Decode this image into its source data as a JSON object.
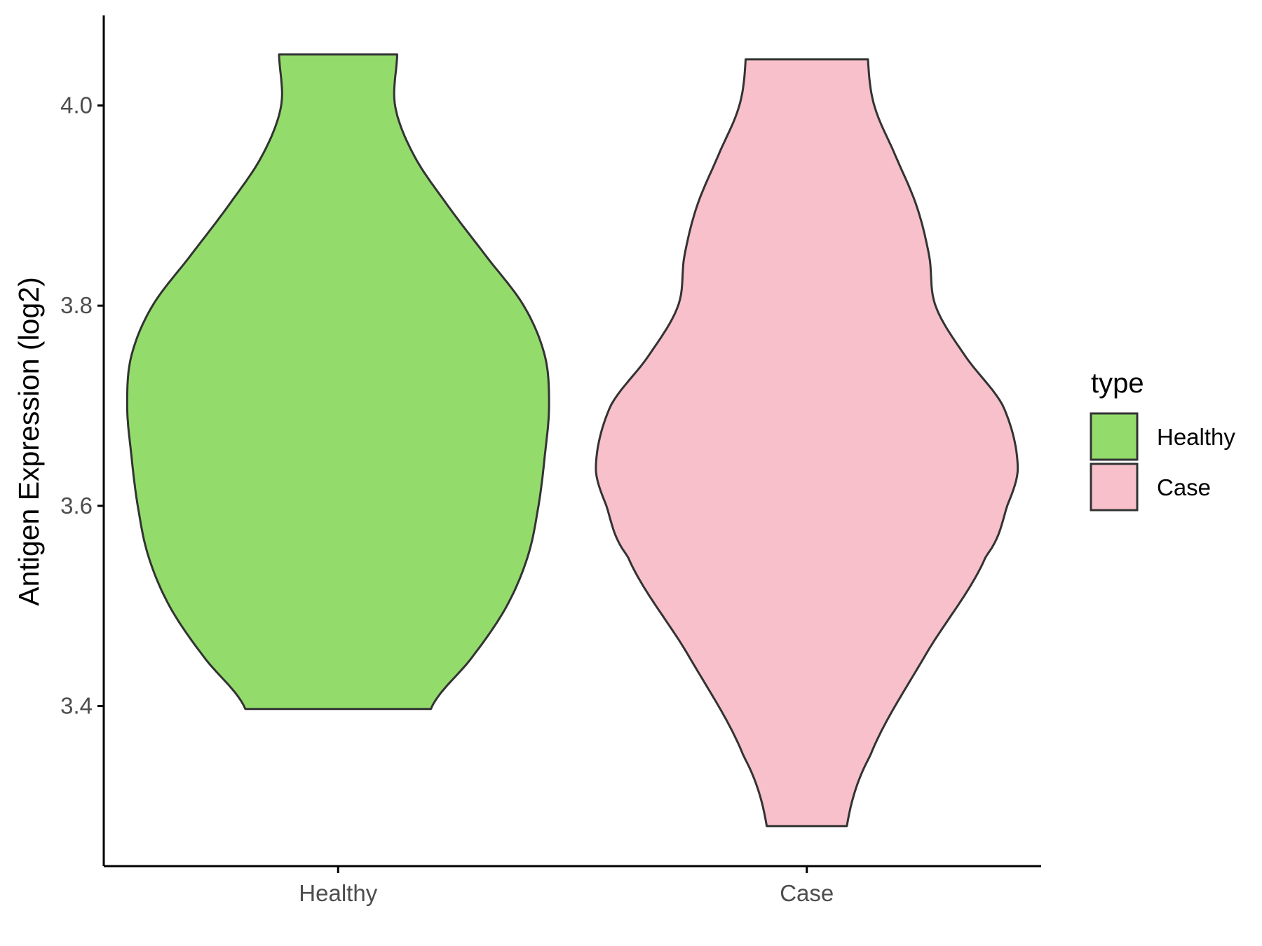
{
  "chart_data": {
    "type": "violin",
    "title": "",
    "xlabel": "",
    "ylabel": "Antigen Expression (log2)",
    "ylim": [
      3.24,
      4.09
    ],
    "y_ticks": [
      "3.4",
      "3.6",
      "3.8",
      "4.0"
    ],
    "categories": [
      "Healthy",
      "Case"
    ],
    "legend": {
      "title": "type",
      "position": "right",
      "entries": [
        "Healthy",
        "Case"
      ]
    },
    "grid": false,
    "series": [
      {
        "name": "Healthy",
        "color": "#93DC6C",
        "min": 3.397,
        "max": 4.051,
        "density_profile": [
          [
            3.397,
            0.44
          ],
          [
            3.45,
            0.64
          ],
          [
            3.5,
            0.8
          ],
          [
            3.55,
            0.9
          ],
          [
            3.6,
            0.95
          ],
          [
            3.65,
            0.98
          ],
          [
            3.7,
            1.0
          ],
          [
            3.75,
            0.98
          ],
          [
            3.8,
            0.88
          ],
          [
            3.85,
            0.7
          ],
          [
            3.9,
            0.52
          ],
          [
            3.95,
            0.36
          ],
          [
            4.0,
            0.27
          ],
          [
            4.051,
            0.28
          ]
        ]
      },
      {
        "name": "Case",
        "color": "#F7C0CB",
        "min": 3.28,
        "max": 4.046,
        "density_profile": [
          [
            3.28,
            0.19
          ],
          [
            3.35,
            0.3
          ],
          [
            3.45,
            0.56
          ],
          [
            3.55,
            0.85
          ],
          [
            3.6,
            0.95
          ],
          [
            3.64,
            1.0
          ],
          [
            3.7,
            0.93
          ],
          [
            3.75,
            0.75
          ],
          [
            3.8,
            0.61
          ],
          [
            3.85,
            0.58
          ],
          [
            3.9,
            0.52
          ],
          [
            3.95,
            0.42
          ],
          [
            4.0,
            0.32
          ],
          [
            4.046,
            0.29
          ]
        ]
      }
    ]
  }
}
